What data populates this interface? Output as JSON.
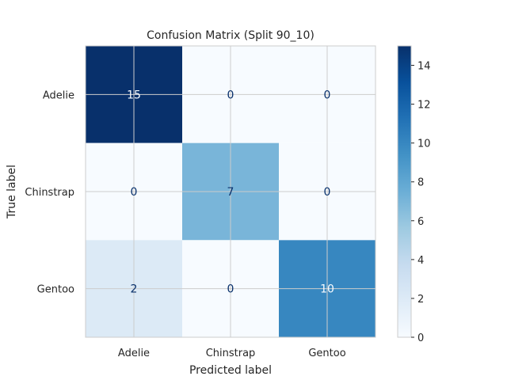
{
  "chart_data": {
    "type": "heatmap",
    "title": "Confusion Matrix (Split 90_10)",
    "xlabel": "Predicted label",
    "ylabel": "True label",
    "x_categories": [
      "Adelie",
      "Chinstrap",
      "Gentoo"
    ],
    "y_categories": [
      "Adelie",
      "Chinstrap",
      "Gentoo"
    ],
    "values": [
      [
        15,
        0,
        0
      ],
      [
        0,
        7,
        0
      ],
      [
        2,
        0,
        10
      ]
    ],
    "colormap": "Blues",
    "vmin": 0,
    "vmax": 15,
    "colorbar_ticks": [
      0,
      2,
      4,
      6,
      8,
      10,
      12,
      14
    ],
    "grid": true,
    "colorbar_placement": "right"
  }
}
